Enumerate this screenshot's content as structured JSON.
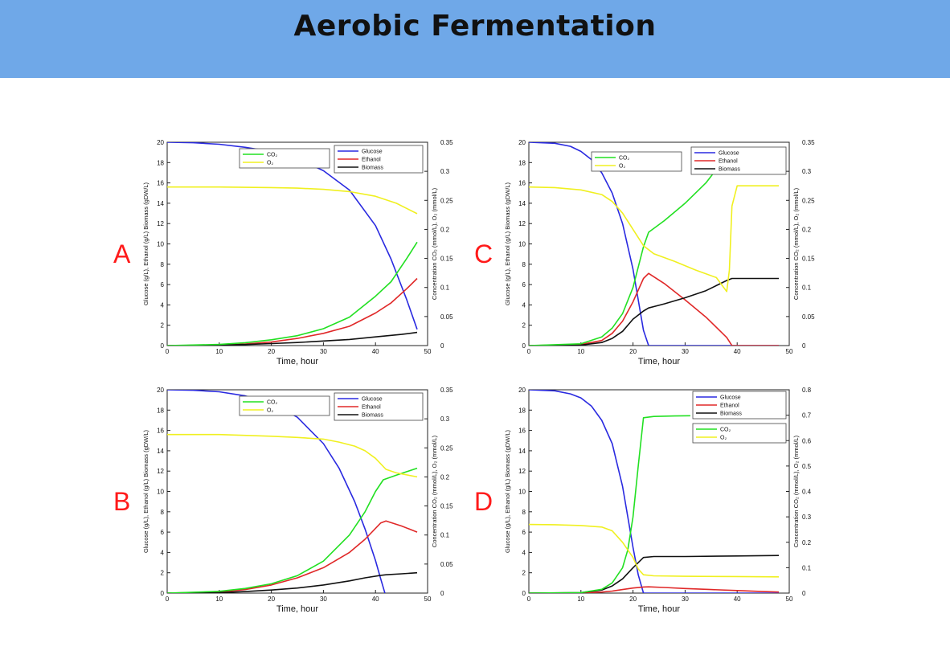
{
  "header": {
    "title": "Aerobic Fermentation"
  },
  "colors": {
    "header_bg": "#6fa8e8",
    "panel_label": "#ff1a1a",
    "glucose": "#2a2ae0",
    "ethanol": "#e02828",
    "biomass": "#111111",
    "co2": "#22e022",
    "o2": "#f0f020"
  },
  "chart_data": [
    {
      "label": "A",
      "type": "line",
      "xlabel": "Time, hour",
      "ylabel": "Glucose (g/L), Ethanol (g/L) Biomass (gDW/L)",
      "ylabel_right": "Concentration CO₂ (mmol/L), O₂ (mmol/L)",
      "xlim": [
        0,
        50
      ],
      "ylim": [
        0,
        20
      ],
      "ylim_right": [
        0,
        0.35
      ],
      "xticks": [
        "0",
        "10",
        "20",
        "30",
        "40",
        "50"
      ],
      "yticks": [
        "0",
        "2",
        "4",
        "6",
        "8",
        "10",
        "12",
        "14",
        "16",
        "18",
        "20"
      ],
      "yticks_right": [
        "0",
        "0.05",
        "0.1",
        "0.15",
        "0.2",
        "0.25",
        "0.3",
        "0.35"
      ],
      "legend_left": [
        "Glucose",
        "Ethanol",
        "Biomass"
      ],
      "legend_right": [
        "CO₂",
        "O₂"
      ],
      "series": [
        {
          "name": "Glucose",
          "axis": "left",
          "color": "#2a2ae0",
          "x": [
            0,
            5,
            10,
            15,
            20,
            25,
            30,
            35,
            40,
            43,
            46,
            48
          ],
          "y": [
            20,
            19.95,
            19.8,
            19.5,
            19.1,
            18.4,
            17.2,
            15.3,
            11.8,
            8.5,
            4.5,
            1.6
          ]
        },
        {
          "name": "Ethanol",
          "axis": "left",
          "color": "#e02828",
          "x": [
            0,
            10,
            15,
            20,
            25,
            30,
            35,
            40,
            43,
            46,
            48
          ],
          "y": [
            0,
            0.05,
            0.15,
            0.35,
            0.7,
            1.2,
            1.9,
            3.2,
            4.2,
            5.6,
            6.6
          ]
        },
        {
          "name": "Biomass",
          "axis": "left",
          "color": "#111111",
          "x": [
            0,
            10,
            15,
            20,
            25,
            30,
            35,
            40,
            45,
            48
          ],
          "y": [
            0,
            0.05,
            0.1,
            0.2,
            0.3,
            0.45,
            0.6,
            0.85,
            1.1,
            1.3
          ]
        },
        {
          "name": "CO₂",
          "axis": "right",
          "color": "#22e022",
          "x": [
            0,
            10,
            15,
            20,
            25,
            30,
            35,
            40,
            43,
            46,
            48
          ],
          "y": [
            0,
            0.002,
            0.005,
            0.01,
            0.017,
            0.029,
            0.049,
            0.085,
            0.11,
            0.15,
            0.178
          ]
        },
        {
          "name": "O₂",
          "axis": "right",
          "color": "#f0f020",
          "x": [
            0,
            10,
            20,
            25,
            30,
            35,
            40,
            44,
            48
          ],
          "y": [
            0.273,
            0.273,
            0.272,
            0.271,
            0.269,
            0.265,
            0.257,
            0.245,
            0.227
          ]
        }
      ]
    },
    {
      "label": "C",
      "type": "line",
      "xlabel": "Time, hour",
      "ylabel": "Glucose (g/L), Ethanol (g/L) Biomass (gDW/L)",
      "ylabel_right": "Concentration CO₂ (mmol/L), O₂ (mmol/L)",
      "xlim": [
        0,
        50
      ],
      "ylim": [
        0,
        20
      ],
      "ylim_right": [
        0,
        0.35
      ],
      "xticks": [
        "0",
        "10",
        "20",
        "30",
        "40",
        "50"
      ],
      "yticks": [
        "0",
        "2",
        "4",
        "6",
        "8",
        "10",
        "12",
        "14",
        "16",
        "18",
        "20"
      ],
      "yticks_right": [
        "0",
        "0.05",
        "0.1",
        "0.15",
        "0.2",
        "0.25",
        "0.3",
        "0.35"
      ],
      "legend_left": [
        "CO₂",
        "O₂"
      ],
      "legend_right": [
        "Glucose",
        "Ethanol",
        "Biomass"
      ],
      "series": [
        {
          "name": "Glucose",
          "axis": "left",
          "color": "#2a2ae0",
          "x": [
            0,
            5,
            8,
            10,
            12,
            14,
            16,
            18,
            20,
            21,
            22,
            23,
            48
          ],
          "y": [
            20,
            19.9,
            19.6,
            19.1,
            18.3,
            17,
            15,
            12,
            7.5,
            4.5,
            1.5,
            0,
            0
          ]
        },
        {
          "name": "Ethanol",
          "axis": "left",
          "color": "#e02828",
          "x": [
            0,
            10,
            14,
            16,
            18,
            20,
            22,
            23,
            26,
            30,
            34,
            38,
            39,
            48
          ],
          "y": [
            0,
            0.1,
            0.5,
            1.2,
            2.4,
            4.3,
            6.6,
            7.1,
            6.1,
            4.5,
            2.8,
            0.8,
            0,
            0
          ]
        },
        {
          "name": "Biomass",
          "axis": "left",
          "color": "#111111",
          "x": [
            0,
            10,
            14,
            16,
            18,
            20,
            22,
            23,
            26,
            30,
            34,
            38,
            39,
            48
          ],
          "y": [
            0,
            0.05,
            0.3,
            0.7,
            1.4,
            2.6,
            3.4,
            3.7,
            4.1,
            4.7,
            5.4,
            6.4,
            6.6,
            6.6
          ]
        },
        {
          "name": "CO₂",
          "axis": "right",
          "color": "#22e022",
          "x": [
            0,
            10,
            14,
            16,
            18,
            20,
            22,
            23,
            26,
            30,
            34,
            37
          ],
          "y": [
            0,
            0.003,
            0.015,
            0.03,
            0.055,
            0.1,
            0.17,
            0.195,
            0.215,
            0.245,
            0.28,
            0.315
          ]
        },
        {
          "name": "O₂",
          "axis": "right",
          "color": "#f0f020",
          "x": [
            0,
            5,
            10,
            14,
            16,
            18,
            20,
            22,
            24,
            28,
            32,
            36,
            38,
            38.5,
            39,
            40,
            48
          ],
          "y": [
            0.273,
            0.272,
            0.268,
            0.26,
            0.248,
            0.228,
            0.2,
            0.172,
            0.158,
            0.145,
            0.13,
            0.117,
            0.093,
            0.13,
            0.24,
            0.275,
            0.275
          ]
        }
      ]
    },
    {
      "label": "B",
      "type": "line",
      "xlabel": "Time, hour",
      "ylabel": "Glucose (g/L), Ethanol (g/L) Biomass (gDW/L)",
      "ylabel_right": "Concentration CO₂ (mmol/L), O₂ (mmol/L)",
      "xlim": [
        0,
        50
      ],
      "ylim": [
        0,
        20
      ],
      "ylim_right": [
        0,
        0.35
      ],
      "xticks": [
        "0",
        "10",
        "20",
        "30",
        "40",
        "50"
      ],
      "yticks": [
        "0",
        "2",
        "4",
        "6",
        "8",
        "10",
        "12",
        "14",
        "16",
        "18",
        "20"
      ],
      "yticks_right": [
        "0",
        "0.05",
        "0.1",
        "0.15",
        "0.2",
        "0.25",
        "0.3",
        "0.35"
      ],
      "legend_left": [
        "Glucose",
        "Ethanol",
        "Biomass"
      ],
      "legend_right": [
        "CO₂",
        "O₂"
      ],
      "series": [
        {
          "name": "Glucose",
          "axis": "left",
          "color": "#2a2ae0",
          "x": [
            0,
            5,
            10,
            15,
            20,
            25,
            30,
            33,
            36,
            38,
            40,
            41,
            41.8
          ],
          "y": [
            20,
            19.95,
            19.8,
            19.4,
            18.7,
            17.3,
            14.7,
            12.3,
            9,
            6.3,
            3.2,
            1.4,
            0
          ]
        },
        {
          "name": "Ethanol",
          "axis": "left",
          "color": "#e02828",
          "x": [
            0,
            10,
            15,
            20,
            25,
            30,
            35,
            38,
            41,
            42,
            45,
            48
          ],
          "y": [
            0,
            0.1,
            0.35,
            0.8,
            1.5,
            2.5,
            4,
            5.3,
            6.9,
            7.1,
            6.6,
            6
          ]
        },
        {
          "name": "Biomass",
          "axis": "left",
          "color": "#111111",
          "x": [
            0,
            10,
            15,
            20,
            25,
            30,
            35,
            38,
            41,
            42,
            45,
            48
          ],
          "y": [
            0,
            0.05,
            0.15,
            0.3,
            0.5,
            0.8,
            1.2,
            1.5,
            1.75,
            1.8,
            1.9,
            2
          ]
        },
        {
          "name": "CO₂",
          "axis": "right",
          "color": "#22e022",
          "x": [
            0,
            10,
            15,
            20,
            25,
            30,
            35,
            38,
            40,
            41.5,
            44,
            46,
            48
          ],
          "y": [
            0,
            0.003,
            0.008,
            0.016,
            0.03,
            0.055,
            0.1,
            0.14,
            0.175,
            0.195,
            0.203,
            0.209,
            0.215
          ]
        },
        {
          "name": "O₂",
          "axis": "right",
          "color": "#f0f020",
          "x": [
            0,
            10,
            20,
            25,
            30,
            33,
            36,
            38,
            40,
            42,
            44,
            48
          ],
          "y": [
            0.273,
            0.273,
            0.27,
            0.268,
            0.265,
            0.26,
            0.253,
            0.245,
            0.232,
            0.213,
            0.207,
            0.2
          ]
        }
      ]
    },
    {
      "label": "D",
      "type": "line",
      "xlabel": "Time, hour",
      "ylabel": "Glucose (g/L), Ethanol (g/L) Biomass (gDW/L)",
      "ylabel_right": "Concentration CO₂ (mmol/L), O₂ (mmol/L)",
      "xlim": [
        0,
        50
      ],
      "ylim": [
        0,
        20
      ],
      "ylim_right": [
        0,
        0.8
      ],
      "xticks": [
        "0",
        "10",
        "20",
        "30",
        "40",
        "50"
      ],
      "yticks": [
        "0",
        "2",
        "4",
        "6",
        "8",
        "10",
        "12",
        "14",
        "16",
        "18",
        "20"
      ],
      "yticks_right": [
        "0",
        "0.1",
        "0.2",
        "0.3",
        "0.4",
        "0.5",
        "0.6",
        "0.7",
        "0.8"
      ],
      "legend_left": [],
      "legend_right": [
        "Glucose",
        "Ethanol",
        "Biomass"
      ],
      "legend_right_lower": [
        "CO₂",
        "O₂"
      ],
      "series": [
        {
          "name": "Glucose",
          "axis": "left",
          "color": "#2a2ae0",
          "x": [
            0,
            5,
            8,
            10,
            12,
            14,
            16,
            18,
            19,
            20,
            21,
            22,
            48
          ],
          "y": [
            20,
            19.9,
            19.6,
            19.2,
            18.4,
            17,
            14.7,
            10.5,
            7.5,
            4.5,
            1.8,
            0,
            0
          ]
        },
        {
          "name": "Ethanol",
          "axis": "left",
          "color": "#e02828",
          "x": [
            0,
            10,
            14,
            16,
            18,
            20,
            22,
            23,
            26,
            30,
            35,
            40,
            45,
            48
          ],
          "y": [
            0,
            0.02,
            0.1,
            0.2,
            0.35,
            0.5,
            0.6,
            0.62,
            0.55,
            0.45,
            0.35,
            0.25,
            0.15,
            0.1
          ]
        },
        {
          "name": "Biomass",
          "axis": "left",
          "color": "#111111",
          "x": [
            0,
            10,
            14,
            16,
            18,
            20,
            22,
            24,
            30,
            40,
            48
          ],
          "y": [
            0,
            0.05,
            0.3,
            0.7,
            1.4,
            2.5,
            3.5,
            3.6,
            3.6,
            3.65,
            3.7
          ]
        },
        {
          "name": "CO₂",
          "axis": "right",
          "color": "#22e022",
          "x": [
            0,
            10,
            14,
            16,
            18,
            19,
            20,
            21,
            22,
            24,
            28,
            31
          ],
          "y": [
            0,
            0.002,
            0.015,
            0.04,
            0.1,
            0.17,
            0.3,
            0.5,
            0.69,
            0.695,
            0.697,
            0.698
          ]
        },
        {
          "name": "O₂",
          "axis": "right",
          "color": "#f0f020",
          "x": [
            0,
            5,
            10,
            14,
            16,
            18,
            20,
            21,
            22,
            24,
            30,
            40,
            48
          ],
          "y": [
            0.27,
            0.269,
            0.266,
            0.26,
            0.245,
            0.2,
            0.14,
            0.095,
            0.072,
            0.068,
            0.066,
            0.065,
            0.064
          ]
        }
      ]
    }
  ]
}
